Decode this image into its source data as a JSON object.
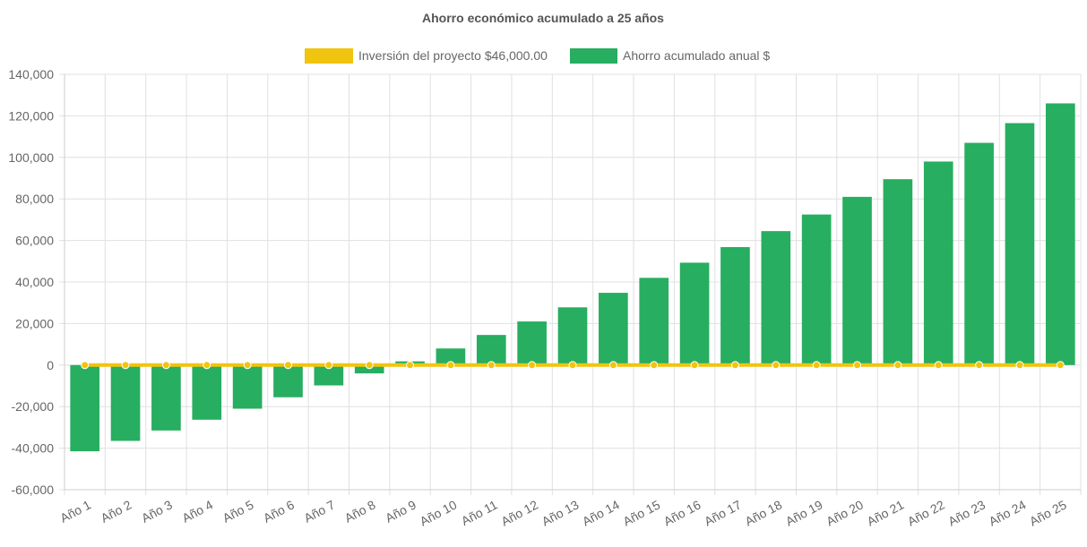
{
  "chart_data": {
    "type": "bar",
    "title": "Ahorro económico acumulado a 25 años",
    "categories": [
      "Año 1",
      "Año 2",
      "Año 3",
      "Año 4",
      "Año 5",
      "Año 6",
      "Año 7",
      "Año 8",
      "Año 9",
      "Año 10",
      "Año 11",
      "Año 12",
      "Año 13",
      "Año 14",
      "Año 15",
      "Año 16",
      "Año 17",
      "Año 18",
      "Año 19",
      "Año 20",
      "Año 21",
      "Año 22",
      "Año 23",
      "Año 24",
      "Año 25"
    ],
    "series": [
      {
        "name": "Inversión del proyecto $46,000.00",
        "type": "line",
        "color": "#f1c40f",
        "values": [
          0,
          0,
          0,
          0,
          0,
          0,
          0,
          0,
          0,
          0,
          0,
          0,
          0,
          0,
          0,
          0,
          0,
          0,
          0,
          0,
          0,
          0,
          0,
          0,
          0
        ]
      },
      {
        "name": "Ahorro acumulado anual $",
        "type": "bar",
        "color": "#27ae60",
        "values": [
          -41500,
          -36500,
          -31500,
          -26300,
          -21000,
          -15500,
          -9800,
          -4000,
          1800,
          8000,
          14500,
          21000,
          27800,
          34800,
          42000,
          49300,
          56800,
          64500,
          72500,
          81000,
          89500,
          98000,
          107000,
          116500,
          126000
        ]
      }
    ],
    "ylim": [
      -60000,
      140000
    ],
    "yticks": [
      "140,000",
      "120,000",
      "100,000",
      "80,000",
      "60,000",
      "40,000",
      "20,000",
      "0",
      "-20,000",
      "-40,000",
      "-60,000"
    ],
    "legend_position": "top-center",
    "grid": true
  }
}
